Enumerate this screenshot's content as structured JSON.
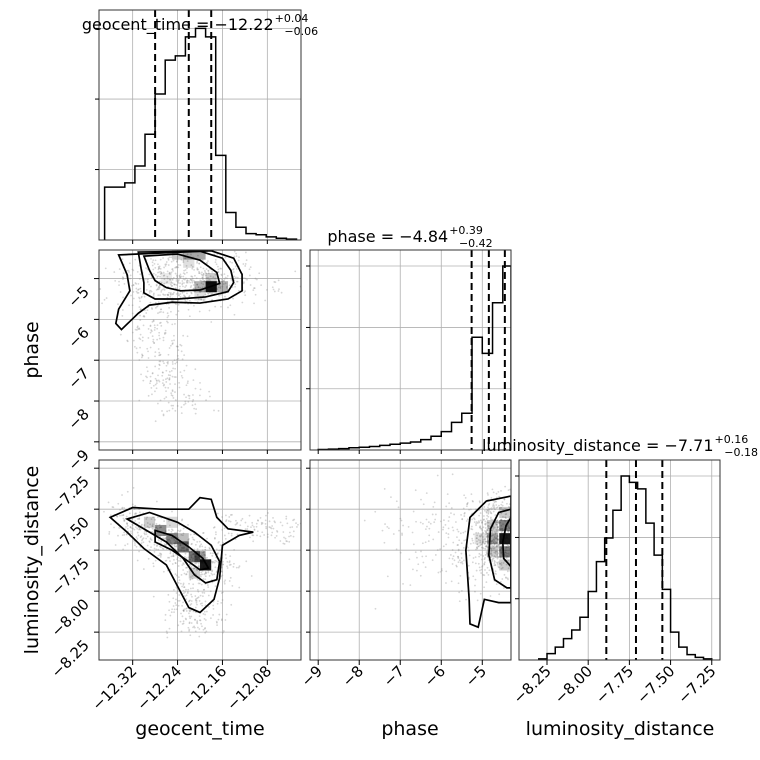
{
  "chart_data": [
    {
      "type": "histogram",
      "panel": "diag-geocent-time",
      "param": "geocent_time",
      "title": {
        "prefix": "geocent_time = ",
        "median": "−12.22",
        "plus": "+0.04",
        "minus": "−0.06"
      },
      "xlim": [
        -12.38,
        -12.02
      ],
      "bin_edges": [
        -12.37,
        -12.352,
        -12.334,
        -12.316,
        -12.298,
        -12.28,
        -12.262,
        -12.244,
        -12.226,
        -12.208,
        -12.19,
        -12.172,
        -12.154,
        -12.136,
        -12.118,
        -12.1,
        -12.082,
        -12.064,
        -12.046,
        -12.028
      ],
      "counts": [
        0.25,
        0.25,
        0.27,
        0.35,
        0.5,
        0.69,
        0.85,
        0.87,
        0.96,
        1.0,
        0.96,
        0.4,
        0.13,
        0.06,
        0.03,
        0.025,
        0.015,
        0.008,
        0.004
      ],
      "quantiles": [
        -12.28,
        -12.22,
        -12.18
      ]
    },
    {
      "type": "histogram",
      "panel": "diag-phase",
      "param": "phase",
      "title": {
        "prefix": "phase = ",
        "median": "−4.84",
        "plus": "+0.39",
        "minus": "−0.42"
      },
      "xlim": [
        -9.2,
        -4.3
      ],
      "bin_edges": [
        -9.0,
        -8.75,
        -8.5,
        -8.25,
        -8.0,
        -7.75,
        -7.5,
        -7.25,
        -7.0,
        -6.75,
        -6.5,
        -6.25,
        -6.0,
        -5.75,
        -5.5,
        -5.25,
        -5.0,
        -4.75,
        -4.5,
        -4.3
      ],
      "counts": [
        0.002,
        0.004,
        0.006,
        0.01,
        0.012,
        0.015,
        0.02,
        0.025,
        0.03,
        0.035,
        0.045,
        0.06,
        0.08,
        0.12,
        0.16,
        0.49,
        0.42,
        0.64,
        0.8
      ],
      "quantiles": [
        -5.26,
        -4.84,
        -4.45
      ]
    },
    {
      "type": "histogram",
      "panel": "diag-luminosity-distance",
      "param": "luminosity_distance",
      "title": {
        "prefix": "luminosity_distance = ",
        "median": "−7.71",
        "plus": "+0.16",
        "minus": "−0.18"
      },
      "xlim": [
        -8.42,
        -7.2
      ],
      "bin_edges": [
        -8.3,
        -8.25,
        -8.2,
        -8.15,
        -8.1,
        -8.05,
        -8.0,
        -7.95,
        -7.9,
        -7.85,
        -7.8,
        -7.75,
        -7.7,
        -7.65,
        -7.6,
        -7.55,
        -7.5,
        -7.45,
        -7.4,
        -7.35,
        -7.3,
        -7.25
      ],
      "counts": [
        0.005,
        0.03,
        0.06,
        0.1,
        0.14,
        0.2,
        0.32,
        0.46,
        0.57,
        0.7,
        0.86,
        0.83,
        0.8,
        0.64,
        0.49,
        0.33,
        0.13,
        0.06,
        0.025,
        0.012,
        0.005
      ],
      "quantiles": [
        -7.89,
        -7.71,
        -7.55
      ]
    },
    {
      "type": "scatter",
      "panel": "phase-vs-geocent-time",
      "x_param": "geocent_time",
      "y_param": "phase",
      "xlim": [
        -12.38,
        -12.02
      ],
      "ylim": [
        -9.2,
        -4.3
      ],
      "contours": [
        [
          [
            -12.3,
            -4.45
          ],
          [
            -12.29,
            -4.8
          ],
          [
            -12.28,
            -5.05
          ],
          [
            -12.26,
            -5.22
          ],
          [
            -12.235,
            -5.3
          ],
          [
            -12.2,
            -5.28
          ],
          [
            -12.165,
            -5.12
          ],
          [
            -12.17,
            -4.85
          ],
          [
            -12.2,
            -4.55
          ],
          [
            -12.24,
            -4.4
          ]
        ],
        [
          [
            -12.31,
            -4.35
          ],
          [
            -12.305,
            -4.75
          ],
          [
            -12.3,
            -5.1
          ],
          [
            -12.3,
            -5.35
          ],
          [
            -12.28,
            -5.5
          ],
          [
            -12.24,
            -5.5
          ],
          [
            -12.19,
            -5.45
          ],
          [
            -12.15,
            -5.32
          ],
          [
            -12.14,
            -5.1
          ],
          [
            -12.145,
            -4.8
          ],
          [
            -12.16,
            -4.5
          ],
          [
            -12.2,
            -4.33
          ]
        ],
        [
          [
            -12.345,
            -4.42
          ],
          [
            -12.33,
            -4.9
          ],
          [
            -12.325,
            -5.3
          ],
          [
            -12.345,
            -5.75
          ],
          [
            -12.35,
            -6.1
          ],
          [
            -12.34,
            -6.25
          ],
          [
            -12.325,
            -6.05
          ],
          [
            -12.31,
            -5.85
          ],
          [
            -12.29,
            -5.65
          ],
          [
            -12.25,
            -5.58
          ],
          [
            -12.2,
            -5.6
          ],
          [
            -12.15,
            -5.5
          ],
          [
            -12.125,
            -5.3
          ],
          [
            -12.125,
            -4.9
          ],
          [
            -12.14,
            -4.5
          ],
          [
            -12.18,
            -4.32
          ]
        ]
      ],
      "density_cells": [
        {
          "x": -12.22,
          "y": -4.4,
          "v": 0.35
        },
        {
          "x": -12.2,
          "y": -4.4,
          "v": 0.35
        },
        {
          "x": -12.24,
          "y": -4.4,
          "v": 0.2
        },
        {
          "x": -12.22,
          "y": -4.6,
          "v": 0.12
        },
        {
          "x": -12.18,
          "y": -5.2,
          "v": 0.95
        },
        {
          "x": -12.2,
          "y": -5.2,
          "v": 0.3
        },
        {
          "x": -12.16,
          "y": -5.2,
          "v": 0.3
        },
        {
          "x": -12.18,
          "y": -5.0,
          "v": 0.2
        },
        {
          "x": -12.2,
          "y": -5.4,
          "v": 0.12
        },
        {
          "x": -12.26,
          "y": -5.0,
          "v": 0.08
        }
      ],
      "points": {
        "count": 900,
        "seed": 11,
        "dist": "banana-phase"
      }
    },
    {
      "type": "scatter",
      "panel": "luminosity-distance-vs-geocent-time",
      "x_param": "geocent_time",
      "y_param": "luminosity_distance",
      "xlim": [
        -12.38,
        -12.02
      ],
      "ylim": [
        -8.42,
        -7.2
      ],
      "contours": [
        [
          [
            -12.28,
            -7.63
          ],
          [
            -12.25,
            -7.66
          ],
          [
            -12.22,
            -7.73
          ],
          [
            -12.195,
            -7.8
          ],
          [
            -12.185,
            -7.86
          ],
          [
            -12.2,
            -7.87
          ],
          [
            -12.22,
            -7.82
          ],
          [
            -12.25,
            -7.75
          ],
          [
            -12.28,
            -7.7
          ]
        ],
        [
          [
            -12.33,
            -7.56
          ],
          [
            -12.3,
            -7.62
          ],
          [
            -12.26,
            -7.7
          ],
          [
            -12.23,
            -7.8
          ],
          [
            -12.21,
            -7.9
          ],
          [
            -12.19,
            -7.95
          ],
          [
            -12.17,
            -7.93
          ],
          [
            -12.165,
            -7.82
          ],
          [
            -12.18,
            -7.72
          ],
          [
            -12.21,
            -7.64
          ],
          [
            -12.24,
            -7.58
          ],
          [
            -12.29,
            -7.52
          ]
        ],
        [
          [
            -12.36,
            -7.55
          ],
          [
            -12.33,
            -7.64
          ],
          [
            -12.3,
            -7.74
          ],
          [
            -12.26,
            -7.84
          ],
          [
            -12.24,
            -7.97
          ],
          [
            -12.22,
            -8.1
          ],
          [
            -12.2,
            -8.13
          ],
          [
            -12.175,
            -8.05
          ],
          [
            -12.165,
            -7.92
          ],
          [
            -12.16,
            -7.72
          ],
          [
            -12.13,
            -7.66
          ],
          [
            -12.105,
            -7.64
          ],
          [
            -12.15,
            -7.62
          ],
          [
            -12.17,
            -7.55
          ],
          [
            -12.18,
            -7.44
          ],
          [
            -12.2,
            -7.43
          ],
          [
            -12.22,
            -7.5
          ],
          [
            -12.27,
            -7.5
          ],
          [
            -12.32,
            -7.49
          ]
        ]
      ],
      "density_cells": [
        {
          "x": -12.27,
          "y": -7.63,
          "v": 0.45
        },
        {
          "x": -12.25,
          "y": -7.68,
          "v": 0.5
        },
        {
          "x": -12.23,
          "y": -7.73,
          "v": 0.55
        },
        {
          "x": -12.21,
          "y": -7.79,
          "v": 0.55
        },
        {
          "x": -12.19,
          "y": -7.84,
          "v": 0.9
        },
        {
          "x": -12.2,
          "y": -7.79,
          "v": 0.4
        },
        {
          "x": -12.29,
          "y": -7.58,
          "v": 0.2
        },
        {
          "x": -12.25,
          "y": -7.58,
          "v": 0.15
        },
        {
          "x": -12.23,
          "y": -7.68,
          "v": 0.25
        },
        {
          "x": -12.21,
          "y": -7.89,
          "v": 0.2
        }
      ],
      "points": {
        "count": 900,
        "seed": 23,
        "dist": "banana-ld"
      }
    },
    {
      "type": "scatter",
      "panel": "luminosity-distance-vs-phase",
      "x_param": "phase",
      "y_param": "luminosity_distance",
      "xlim": [
        -9.2,
        -4.3
      ],
      "ylim": [
        -8.42,
        -7.2
      ],
      "contours": [
        [
          [
            -4.3,
            -7.55
          ],
          [
            -4.42,
            -7.6
          ],
          [
            -4.5,
            -7.7
          ],
          [
            -4.48,
            -7.8
          ],
          [
            -4.3,
            -7.85
          ]
        ],
        [
          [
            -4.3,
            -7.5
          ],
          [
            -4.6,
            -7.52
          ],
          [
            -4.8,
            -7.62
          ],
          [
            -4.84,
            -7.78
          ],
          [
            -4.7,
            -7.93
          ],
          [
            -4.4,
            -7.98
          ],
          [
            -4.3,
            -7.98
          ]
        ],
        [
          [
            -4.3,
            -7.42
          ],
          [
            -4.9,
            -7.45
          ],
          [
            -5.3,
            -7.55
          ],
          [
            -5.4,
            -7.75
          ],
          [
            -5.32,
            -8.05
          ],
          [
            -5.3,
            -8.2
          ],
          [
            -5.1,
            -8.22
          ],
          [
            -4.95,
            -8.05
          ],
          [
            -4.6,
            -8.07
          ],
          [
            -4.3,
            -8.07
          ]
        ]
      ],
      "density_cells": [
        {
          "x": -4.45,
          "y": -7.68,
          "v": 0.9
        },
        {
          "x": -4.45,
          "y": -7.6,
          "v": 0.5
        },
        {
          "x": -4.45,
          "y": -7.76,
          "v": 0.5
        },
        {
          "x": -4.75,
          "y": -7.68,
          "v": 0.35
        },
        {
          "x": -4.75,
          "y": -7.6,
          "v": 0.2
        },
        {
          "x": -4.75,
          "y": -7.76,
          "v": 0.2
        },
        {
          "x": -5.05,
          "y": -7.68,
          "v": 0.12
        },
        {
          "x": -4.45,
          "y": -7.52,
          "v": 0.2
        },
        {
          "x": -4.45,
          "y": -7.84,
          "v": 0.2
        }
      ],
      "points": {
        "count": 900,
        "seed": 37,
        "dist": "phase-ld"
      }
    }
  ],
  "axes": {
    "geocent_time": {
      "label": "geocent_time",
      "ticks": [
        -12.32,
        -12.24,
        -12.16,
        -12.08
      ],
      "tick_labels": [
        "−12.32",
        "−12.24",
        "−12.16",
        "−12.08"
      ]
    },
    "phase": {
      "label": "phase",
      "ticks": [
        -9,
        -8,
        -7,
        -6,
        -5
      ],
      "tick_labels": [
        "−9",
        "−8",
        "−7",
        "−6",
        "−5"
      ]
    },
    "luminosity_distance": {
      "label": "luminosity_distance",
      "ticks": [
        -8.25,
        -8.0,
        -7.75,
        -7.5,
        -7.25
      ],
      "tick_labels": [
        "−8.25",
        "−8.00",
        "−7.75",
        "−7.50",
        "−7.25"
      ]
    }
  }
}
